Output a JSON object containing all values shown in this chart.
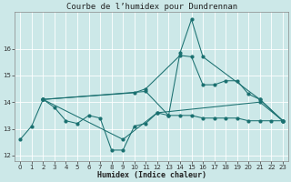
{
  "title": "Courbe de l’humidex pour Dundrennan",
  "xlabel": "Humidex (Indice chaleur)",
  "bg_color": "#cce8e8",
  "line_color": "#1a7070",
  "grid_color": "#ffffff",
  "ylim": [
    11.8,
    17.4
  ],
  "xlim": [
    -0.5,
    23.5
  ],
  "yticks": [
    12,
    13,
    14,
    15,
    16
  ],
  "xticks": [
    0,
    1,
    2,
    3,
    4,
    5,
    6,
    7,
    8,
    9,
    10,
    11,
    12,
    13,
    14,
    15,
    16,
    17,
    18,
    19,
    20,
    21,
    22,
    23
  ],
  "line1_x": [
    0,
    1,
    2,
    3,
    4,
    5,
    6,
    7,
    8,
    9,
    10,
    11,
    12,
    13,
    14,
    15,
    16,
    17,
    18,
    19,
    20,
    21,
    22,
    23
  ],
  "line1_y": [
    12.6,
    13.1,
    14.1,
    13.8,
    13.3,
    13.2,
    13.5,
    13.4,
    12.2,
    12.2,
    13.1,
    13.2,
    13.6,
    13.5,
    13.5,
    13.5,
    13.4,
    13.4,
    13.4,
    13.4,
    13.3,
    13.3,
    13.3,
    13.3
  ],
  "line2_x": [
    2,
    9,
    12,
    21,
    23
  ],
  "line2_y": [
    14.1,
    12.6,
    13.6,
    14.0,
    13.3
  ],
  "line3_x": [
    2,
    11,
    13,
    14,
    15,
    16,
    21,
    23
  ],
  "line3_y": [
    14.1,
    14.4,
    13.5,
    15.85,
    17.1,
    15.7,
    14.1,
    13.3
  ],
  "line4_x": [
    2,
    10,
    11,
    14,
    15,
    16,
    17,
    18,
    19,
    20,
    21,
    23
  ],
  "line4_y": [
    14.1,
    14.35,
    14.5,
    15.75,
    15.7,
    14.65,
    14.65,
    14.8,
    14.8,
    14.3,
    14.1,
    13.3
  ],
  "title_fontsize": 6.5,
  "xlabel_fontsize": 6,
  "tick_fontsize": 5
}
